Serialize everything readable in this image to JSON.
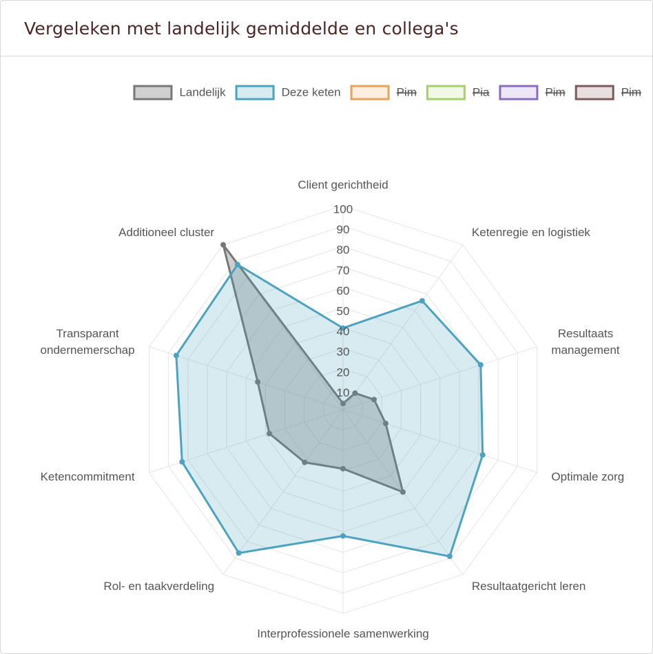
{
  "header": {
    "title": "Vergeleken met landelijk gemiddelde en collega's"
  },
  "chart_data": {
    "type": "radar",
    "categories": [
      "Client gerichtheid",
      "Ketenregie en logistiek",
      "Resultaats\nmanagement",
      "Optimale zorg",
      "Resultaatgericht leren",
      "Interprofessionele samenwerking",
      "Rol- en taakverdeling",
      "Ketencommitment",
      "Transparant\nondernemerschap",
      "Additioneel cluster"
    ],
    "rlim": [
      0,
      100
    ],
    "rticks": [
      10,
      20,
      30,
      40,
      50,
      60,
      70,
      80,
      90,
      100
    ],
    "grid": true,
    "legend": "top-right",
    "series": [
      {
        "name": "Landelijk",
        "color": "#777777",
        "fill": "rgba(120,120,120,0.35)",
        "values": [
          3,
          10,
          16,
          22,
          50,
          29,
          32,
          38,
          44,
          100
        ]
      },
      {
        "name": "Deze keten",
        "color": "#4ba3c0",
        "fill": "rgba(75,163,192,0.22)",
        "values": [
          40,
          66,
          71,
          72,
          89,
          62,
          87,
          83,
          86,
          88
        ]
      },
      {
        "name": "Pim",
        "color": "#e8a25a",
        "fill": "#fdeee0",
        "hidden": true
      },
      {
        "name": "Pia",
        "color": "#a6d06a",
        "fill": "#f1f8e6",
        "hidden": true
      },
      {
        "name": "Pim",
        "color": "#8a6cbf",
        "fill": "#ece6f6",
        "hidden": true
      },
      {
        "name": "Pim",
        "color": "#7a5a5a",
        "fill": "#e8e0e0",
        "hidden": true
      }
    ]
  }
}
